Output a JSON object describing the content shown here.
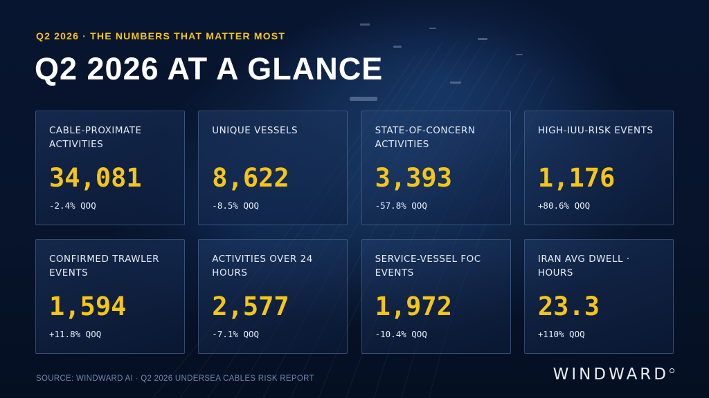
{
  "header": {
    "eyebrow": "Q2 2026 · THE NUMBERS THAT MATTER MOST",
    "title": "Q2 2026 AT A GLANCE"
  },
  "metrics": [
    {
      "label": "CABLE-PROXIMATE ACTIVITIES",
      "value": "34,081",
      "change": "-2.4% QOQ"
    },
    {
      "label": "UNIQUE VESSELS",
      "value": "8,622",
      "change": "-8.5% QOQ"
    },
    {
      "label": "STATE-OF-CONCERN ACTIVITIES",
      "value": "3,393",
      "change": "-57.8% QOQ"
    },
    {
      "label": "HIGH-IUU-RISK EVENTS",
      "value": "1,176",
      "change": "+80.6% QOQ"
    },
    {
      "label": "CONFIRMED TRAWLER EVENTS",
      "value": "1,594",
      "change": "+11.8% QOQ"
    },
    {
      "label": "ACTIVITIES OVER 24 HOURS",
      "value": "2,577",
      "change": "-7.1% QOQ"
    },
    {
      "label": "SERVICE-VESSEL FOC EVENTS",
      "value": "1,972",
      "change": "-10.4% QOQ"
    },
    {
      "label": "IRAN AVG DWELL · HOURS",
      "value": "23.3",
      "change": "+110% QOQ"
    }
  ],
  "footer": {
    "source": "SOURCE: WINDWARD AI · Q2 2026 UNDERSEA CABLES RISK REPORT",
    "brand": "WINDWARD"
  },
  "colors": {
    "accent": "#f5c518",
    "background": "#061127",
    "card_border": "#96b4e1"
  },
  "icons": {
    "brand_mark": "circle-mark-icon"
  }
}
